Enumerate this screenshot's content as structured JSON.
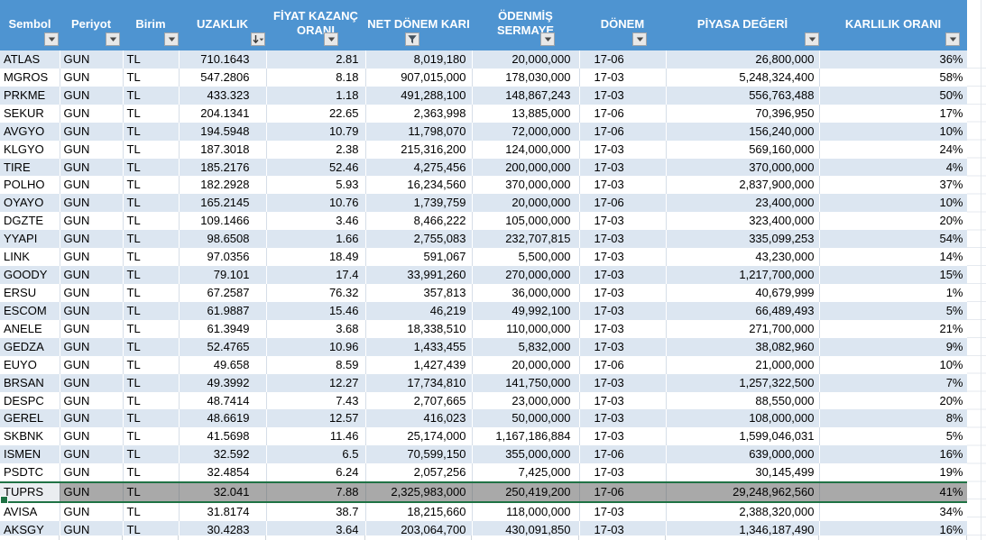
{
  "colors": {
    "header_bg": "#4E94D1",
    "band_row": "#DCE6F1",
    "selected_row": "#A9A9A9",
    "selection_border": "#1F7244",
    "header_text": "#FFFFFF"
  },
  "table": {
    "columns": [
      {
        "label": "Sembol",
        "filter_icon": "dropdown-icon"
      },
      {
        "label": "Periyot",
        "filter_icon": "dropdown-icon"
      },
      {
        "label": "Birim",
        "filter_icon": "dropdown-icon"
      },
      {
        "label": "UZAKLIK",
        "filter_icon": "sort-descending-icon"
      },
      {
        "label": "FİYAT KAZANÇ\nORANI",
        "filter_icon": "dropdown-icon"
      },
      {
        "label": "NET DÖNEM KARI",
        "filter_icon": "filter-funnel-icon"
      },
      {
        "label": "ÖDENMİŞ\nSERMAYE",
        "filter_icon": "dropdown-icon"
      },
      {
        "label": "DÖNEM",
        "filter_icon": "dropdown-icon"
      },
      {
        "label": "PİYASA DEĞERİ",
        "filter_icon": "dropdown-icon"
      },
      {
        "label": "KARLILIK ORANI",
        "filter_icon": "dropdown-icon"
      }
    ],
    "selected_row_symbol": "TUPRS",
    "rows": [
      [
        "ATLAS",
        "GUN",
        "TL",
        "710.1643",
        "2.81",
        "8,019,180",
        "20,000,000",
        "17-06",
        "26,800,000",
        "36%"
      ],
      [
        "MGROS",
        "GUN",
        "TL",
        "547.2806",
        "8.18",
        "907,015,000",
        "178,030,000",
        "17-03",
        "5,248,324,400",
        "58%"
      ],
      [
        "PRKME",
        "GUN",
        "TL",
        "433.323",
        "1.18",
        "491,288,100",
        "148,867,243",
        "17-03",
        "556,763,488",
        "50%"
      ],
      [
        "SEKUR",
        "GUN",
        "TL",
        "204.1341",
        "22.65",
        "2,363,998",
        "13,885,000",
        "17-06",
        "70,396,950",
        "17%"
      ],
      [
        "AVGYO",
        "GUN",
        "TL",
        "194.5948",
        "10.79",
        "11,798,070",
        "72,000,000",
        "17-06",
        "156,240,000",
        "10%"
      ],
      [
        "KLGYO",
        "GUN",
        "TL",
        "187.3018",
        "2.38",
        "215,316,200",
        "124,000,000",
        "17-03",
        "569,160,000",
        "24%"
      ],
      [
        "TIRE",
        "GUN",
        "TL",
        "185.2176",
        "52.46",
        "4,275,456",
        "200,000,000",
        "17-03",
        "370,000,000",
        "4%"
      ],
      [
        "POLHO",
        "GUN",
        "TL",
        "182.2928",
        "5.93",
        "16,234,560",
        "370,000,000",
        "17-03",
        "2,837,900,000",
        "37%"
      ],
      [
        "OYAYO",
        "GUN",
        "TL",
        "165.2145",
        "10.76",
        "1,739,759",
        "20,000,000",
        "17-06",
        "23,400,000",
        "10%"
      ],
      [
        "DGZTE",
        "GUN",
        "TL",
        "109.1466",
        "3.46",
        "8,466,222",
        "105,000,000",
        "17-03",
        "323,400,000",
        "20%"
      ],
      [
        "YYAPI",
        "GUN",
        "TL",
        "98.6508",
        "1.66",
        "2,755,083",
        "232,707,815",
        "17-03",
        "335,099,253",
        "54%"
      ],
      [
        "LINK",
        "GUN",
        "TL",
        "97.0356",
        "18.49",
        "591,067",
        "5,500,000",
        "17-03",
        "43,230,000",
        "14%"
      ],
      [
        "GOODY",
        "GUN",
        "TL",
        "79.101",
        "17.4",
        "33,991,260",
        "270,000,000",
        "17-03",
        "1,217,700,000",
        "15%"
      ],
      [
        "ERSU",
        "GUN",
        "TL",
        "67.2587",
        "76.32",
        "357,813",
        "36,000,000",
        "17-03",
        "40,679,999",
        "1%"
      ],
      [
        "ESCOM",
        "GUN",
        "TL",
        "61.9887",
        "15.46",
        "46,219",
        "49,992,100",
        "17-03",
        "66,489,493",
        "5%"
      ],
      [
        "ANELE",
        "GUN",
        "TL",
        "61.3949",
        "3.68",
        "18,338,510",
        "110,000,000",
        "17-03",
        "271,700,000",
        "21%"
      ],
      [
        "GEDZA",
        "GUN",
        "TL",
        "52.4765",
        "10.96",
        "1,433,455",
        "5,832,000",
        "17-03",
        "38,082,960",
        "9%"
      ],
      [
        "EUYO",
        "GUN",
        "TL",
        "49.658",
        "8.59",
        "1,427,439",
        "20,000,000",
        "17-06",
        "21,000,000",
        "10%"
      ],
      [
        "BRSAN",
        "GUN",
        "TL",
        "49.3992",
        "12.27",
        "17,734,810",
        "141,750,000",
        "17-03",
        "1,257,322,500",
        "7%"
      ],
      [
        "DESPC",
        "GUN",
        "TL",
        "48.7414",
        "7.43",
        "2,707,665",
        "23,000,000",
        "17-03",
        "88,550,000",
        "20%"
      ],
      [
        "GEREL",
        "GUN",
        "TL",
        "48.6619",
        "12.57",
        "416,023",
        "50,000,000",
        "17-03",
        "108,000,000",
        "8%"
      ],
      [
        "SKBNK",
        "GUN",
        "TL",
        "41.5698",
        "11.46",
        "25,174,000",
        "1,167,186,884",
        "17-03",
        "1,599,046,031",
        "5%"
      ],
      [
        "ISMEN",
        "GUN",
        "TL",
        "32.592",
        "6.5",
        "70,599,150",
        "355,000,000",
        "17-06",
        "639,000,000",
        "16%"
      ],
      [
        "PSDTC",
        "GUN",
        "TL",
        "32.4854",
        "6.24",
        "2,057,256",
        "7,425,000",
        "17-03",
        "30,145,499",
        "19%"
      ],
      [
        "TUPRS",
        "GUN",
        "TL",
        "32.041",
        "7.88",
        "2,325,983,000",
        "250,419,200",
        "17-06",
        "29,248,962,560",
        "41%"
      ],
      [
        "AVISA",
        "GUN",
        "TL",
        "31.8174",
        "38.7",
        "18,215,660",
        "118,000,000",
        "17-03",
        "2,388,320,000",
        "34%"
      ],
      [
        "AKSGY",
        "GUN",
        "TL",
        "30.4283",
        "3.64",
        "203,064,700",
        "430,091,850",
        "17-03",
        "1,346,187,490",
        "16%"
      ]
    ]
  }
}
